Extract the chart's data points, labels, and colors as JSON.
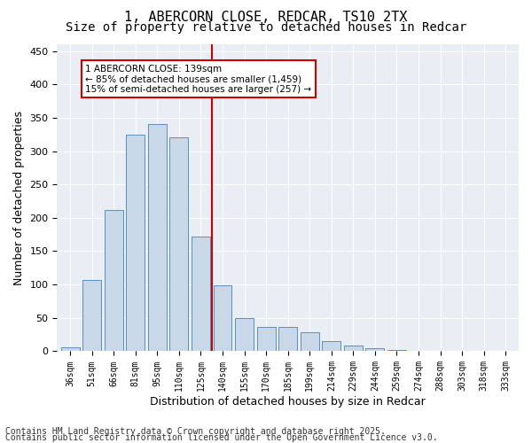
{
  "title_line1": "1, ABERCORN CLOSE, REDCAR, TS10 2TX",
  "title_line2": "Size of property relative to detached houses in Redcar",
  "xlabel": "Distribution of detached houses by size in Redcar",
  "ylabel": "Number of detached properties",
  "categories": [
    "36sqm",
    "51sqm",
    "66sqm",
    "81sqm",
    "95sqm",
    "110sqm",
    "125sqm",
    "140sqm",
    "155sqm",
    "170sqm",
    "185sqm",
    "199sqm",
    "214sqm",
    "229sqm",
    "244sqm",
    "259sqm",
    "274sqm",
    "288sqm",
    "303sqm",
    "318sqm",
    "333sqm"
  ],
  "values": [
    6,
    107,
    212,
    325,
    340,
    320,
    172,
    99,
    50,
    36,
    36,
    29,
    15,
    9,
    5,
    2,
    1,
    0,
    0,
    0,
    0
  ],
  "bar_color": "#c8d8e8",
  "bar_edge_color": "#5a8fc0",
  "vline_x": 7,
  "vline_color": "#cc0000",
  "annotation_text": "1 ABERCORN CLOSE: 139sqm\n← 85% of detached houses are smaller (1,459)\n15% of semi-detached houses are larger (257) →",
  "annotation_box_color": "white",
  "annotation_box_edge_color": "#cc0000",
  "ylim": [
    0,
    460
  ],
  "yticks": [
    0,
    50,
    100,
    150,
    200,
    250,
    300,
    350,
    400,
    450
  ],
  "background_color": "#e8eef4",
  "grid_color": "white",
  "footer_line1": "Contains HM Land Registry data © Crown copyright and database right 2025.",
  "footer_line2": "Contains public sector information licensed under the Open Government Licence v3.0.",
  "title_fontsize": 11,
  "subtitle_fontsize": 10,
  "tick_fontsize": 7,
  "xlabel_fontsize": 9,
  "ylabel_fontsize": 9,
  "footer_fontsize": 7
}
